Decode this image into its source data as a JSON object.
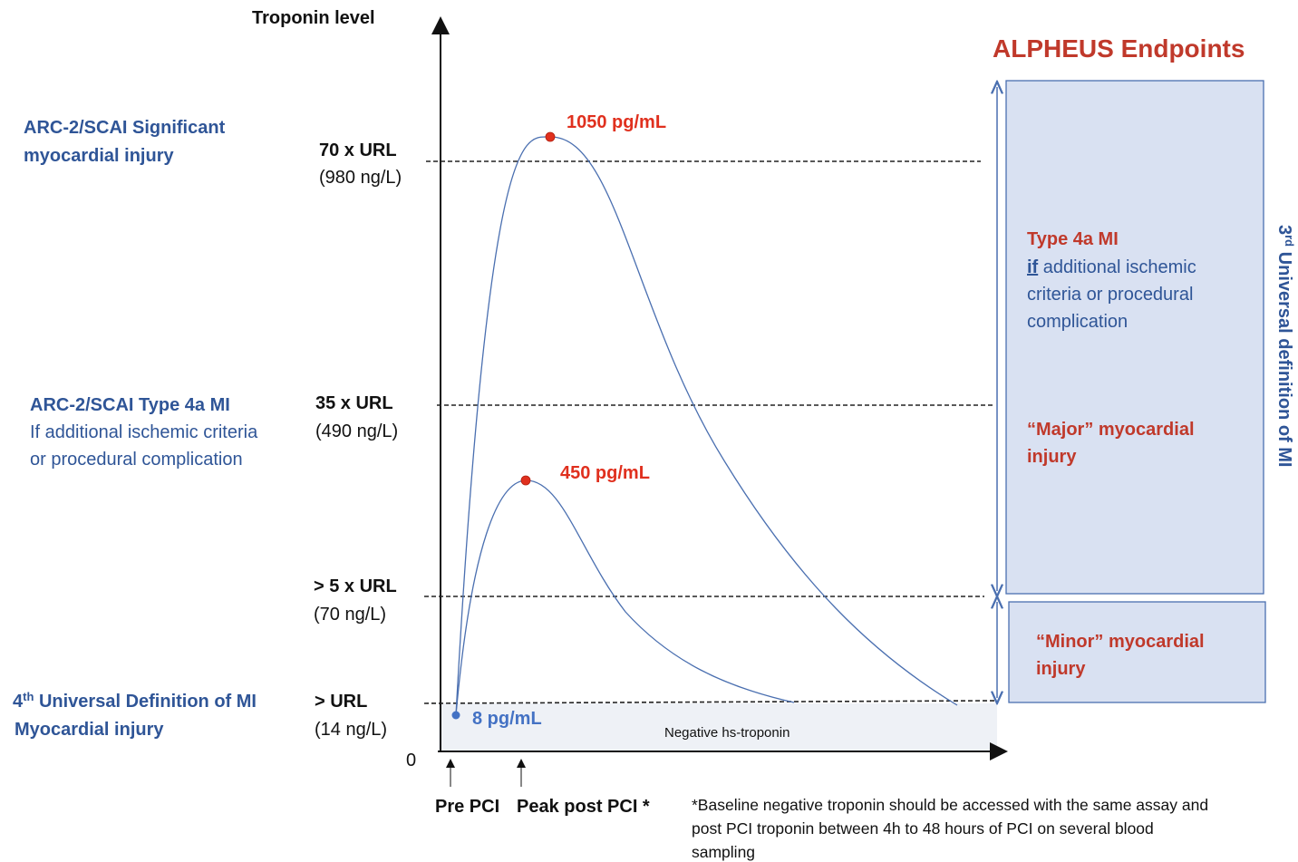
{
  "axis": {
    "y_title": "Troponin level",
    "origin_label": "0",
    "x_labels": [
      "Pre PCI",
      "Peak post  PCI *"
    ]
  },
  "title": "ALPHEUS Endpoints",
  "vertical_label": {
    "prefix": "3",
    "sup": "rd",
    "suffix": " Universal definition of MI"
  },
  "thresholds": [
    {
      "label": "70 x URL",
      "value": "(980 ng/L)"
    },
    {
      "label": "35 x URL",
      "value": "(490 ng/L)"
    },
    {
      "label": "> 5 x URL",
      "value": "(70 ng/L)"
    },
    {
      "label": "> URL",
      "value": "(14 ng/L)"
    }
  ],
  "definitions": {
    "arc_significant": [
      "ARC-2/SCAI Significant",
      "myocardial injury"
    ],
    "arc_type4a": [
      "ARC-2/SCAI  Type 4a MI",
      "If additional ischemic criteria",
      "or procedural complication"
    ],
    "fourth_udmi": {
      "prefix": "4",
      "sup": "th",
      "rest": " Universal Definition of MI",
      "line2": " Myocardial injury"
    }
  },
  "peaks": {
    "high": "1050 pg/mL",
    "low": "450 pg/mL",
    "baseline": "8  pg/mL"
  },
  "negative_zone": "Negative hs-troponin",
  "endpoints": {
    "type4a": {
      "title": "Type 4a MI",
      "if_word": "if",
      "line1_rest": " additional ischemic",
      "line2": "criteria or procedural",
      "line3": "complication"
    },
    "major": [
      "“Major” myocardial",
      "injury"
    ],
    "minor": [
      "“Minor” myocardial",
      "injury"
    ]
  },
  "footnote": [
    "*Baseline negative troponin should be accessed with the same assay and",
    "post PCI troponin between 4h to 48 hours of PCI on several blood",
    "sampling"
  ],
  "colors": {
    "blue": "#2f5597",
    "red": "#e0301e",
    "box_fill": "#d9e1f2",
    "curve": "#4a6fb0"
  }
}
